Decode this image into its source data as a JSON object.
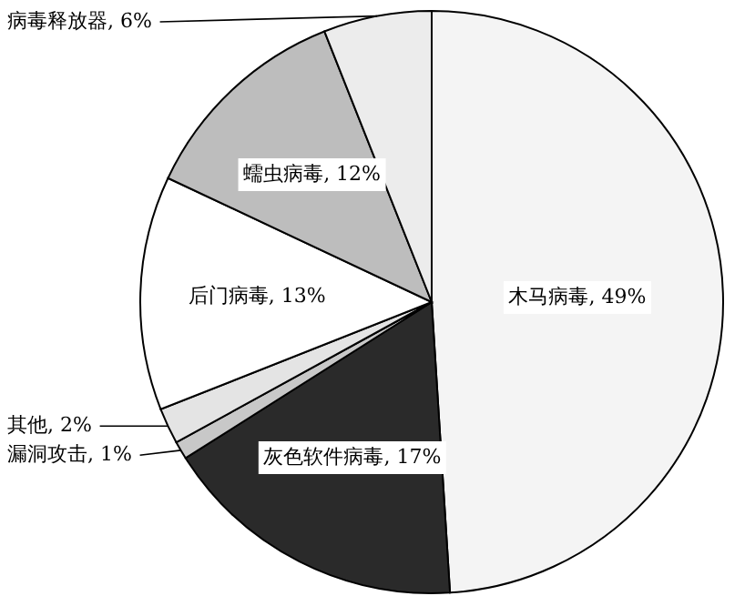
{
  "chart_data": {
    "type": "pie",
    "categories": [
      "木马病毒",
      "灰色软件病毒",
      "漏洞攻击",
      "其他",
      "后门病毒",
      "蠕虫病毒",
      "病毒释放器"
    ],
    "values": [
      49,
      17,
      1,
      2,
      13,
      12,
      6
    ],
    "colors": [
      "#f4f4f4",
      "#2a2a2a",
      "#c8c8c8",
      "#e4e4e4",
      "#ffffff",
      "#bdbdbd",
      "#ececec"
    ],
    "value_labels": [
      "49%",
      "17%",
      "1%",
      "2%",
      "13%",
      "12%",
      "6%"
    ]
  }
}
